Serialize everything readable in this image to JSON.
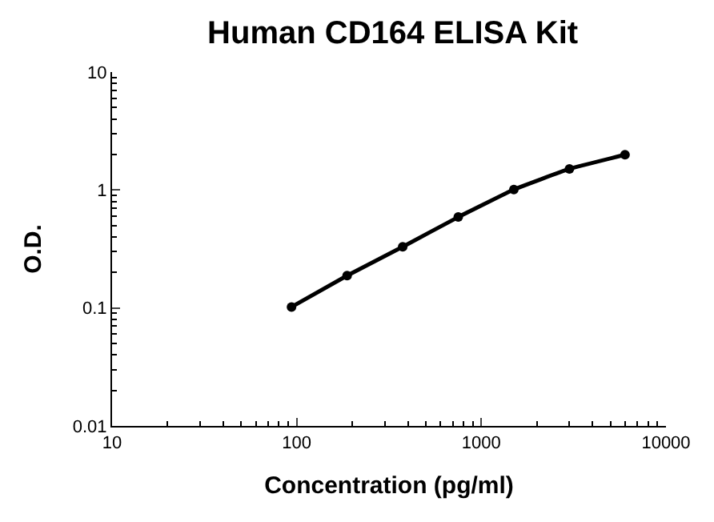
{
  "chart_data": {
    "type": "line",
    "title": "Human CD164 ELISA Kit",
    "xlabel": "Concentration (pg/ml)",
    "ylabel": "O.D.",
    "x": [
      93.75,
      187.5,
      375,
      750,
      1500,
      3000,
      6000
    ],
    "series": [
      {
        "color": "#000000",
        "values": [
          0.102,
          0.188,
          0.33,
          0.59,
          1.01,
          1.51,
          1.99
        ]
      }
    ],
    "log": "xy",
    "xlim": [
      10,
      10000
    ],
    "ylim": [
      0.01,
      10
    ],
    "xticks": [
      10,
      100,
      1000,
      10000
    ],
    "yticks": [
      0.01,
      0.1,
      1,
      10
    ],
    "marker": "circle",
    "line_style": "solid"
  }
}
